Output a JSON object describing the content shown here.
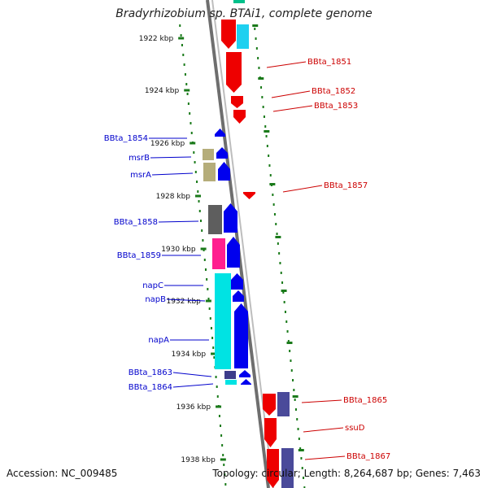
{
  "title": "Bradyrhizobium sp. BTAi1, complete genome",
  "footer": {
    "accession": "Accession: NC_009485",
    "summary": "Topology: circular; Length: 8,264,687 bp; Genes: 7,463"
  },
  "colors": {
    "backbone": "#7f7f7f",
    "tick": "#1a7a1a",
    "forward_gene": "#0000ee",
    "reverse_gene": "#ee0000",
    "left_label": "#0000cc",
    "right_label": "#cc0000"
  },
  "ticks": [
    {
      "label": "1922 kbp"
    },
    {
      "label": "1924 kbp"
    },
    {
      "label": "1926 kbp"
    },
    {
      "label": "1928 kbp"
    },
    {
      "label": "1930 kbp"
    },
    {
      "label": "1932 kbp"
    },
    {
      "label": "1934 kbp"
    },
    {
      "label": "1936 kbp"
    },
    {
      "label": "1938 kbp"
    }
  ],
  "left_labels": [
    "BBta_1854",
    "msrB",
    "msrA",
    "BBta_1858",
    "BBta_1859",
    "napC",
    "napB",
    "napA",
    "BBta_1863",
    "BBta_1864"
  ],
  "right_labels": [
    "BBta_1851",
    "BBta_1852",
    "BBta_1853",
    "BBta_1857",
    "BBta_1865",
    "ssuD",
    "BBta_1867"
  ]
}
